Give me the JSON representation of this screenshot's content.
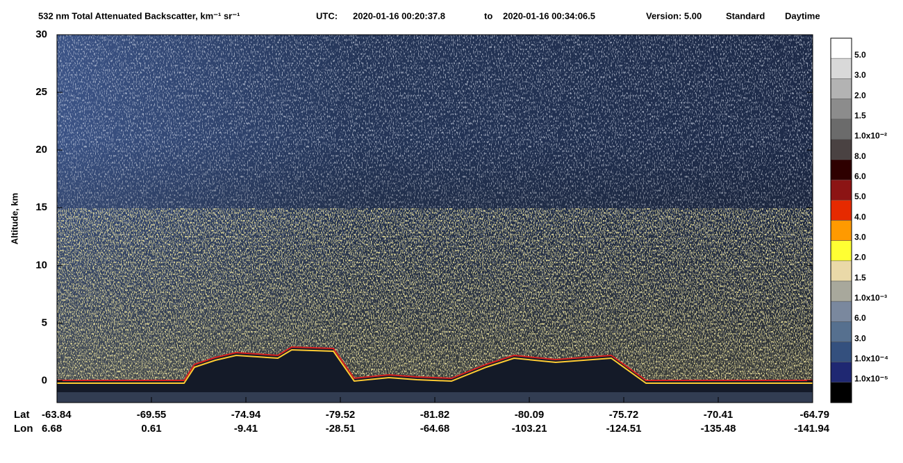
{
  "chart_data": {
    "type": "curtain",
    "title": "532 nm Total Attenuated Backscatter, km⁻¹ sr⁻¹",
    "time_label": "UTC:",
    "start_time": "2020-01-16 00:20:37.8",
    "to_word": "to",
    "end_time": "2020-01-16 00:34:06.5",
    "version": "Version: 5.00",
    "product": "Standard",
    "mode": "Daytime",
    "y_label": "Altitude, km",
    "ylim": [
      -1.9,
      30
    ],
    "yticks": [
      0,
      5,
      10,
      15,
      20,
      25,
      30
    ],
    "lat_label": "Lat",
    "lon_label": "Lon",
    "lat": [
      "-63.84",
      "-69.55",
      "-74.94",
      "-79.52",
      "-81.82",
      "-80.09",
      "-75.72",
      "-70.41",
      "-64.79"
    ],
    "lon": [
      "6.68",
      "0.61",
      "-9.41",
      "-28.51",
      "-64.68",
      "-103.21",
      "-124.51",
      "-135.48",
      "-141.94"
    ],
    "colorbar": {
      "colors": [
        "#ffffff",
        "#d9d9d9",
        "#b3b3b3",
        "#8c8c8c",
        "#6b6b6b",
        "#4a4242",
        "#2e0000",
        "#8c1414",
        "#e62a00",
        "#ff9a00",
        "#ffff33",
        "#ead9a8",
        "#a8a89c",
        "#7a889e",
        "#56708f",
        "#34507e",
        "#1f2872",
        "#000000"
      ],
      "labels": [
        "5.0",
        "3.0",
        "2.0",
        "1.5",
        "1.0x10⁻²",
        "8.0",
        "6.0",
        "5.0",
        "4.0",
        "3.0",
        "2.0",
        "1.5",
        "1.0x10⁻³",
        "6.0",
        "3.0",
        "1.0x10⁻⁴",
        "1.0x10⁻⁵"
      ]
    }
  }
}
